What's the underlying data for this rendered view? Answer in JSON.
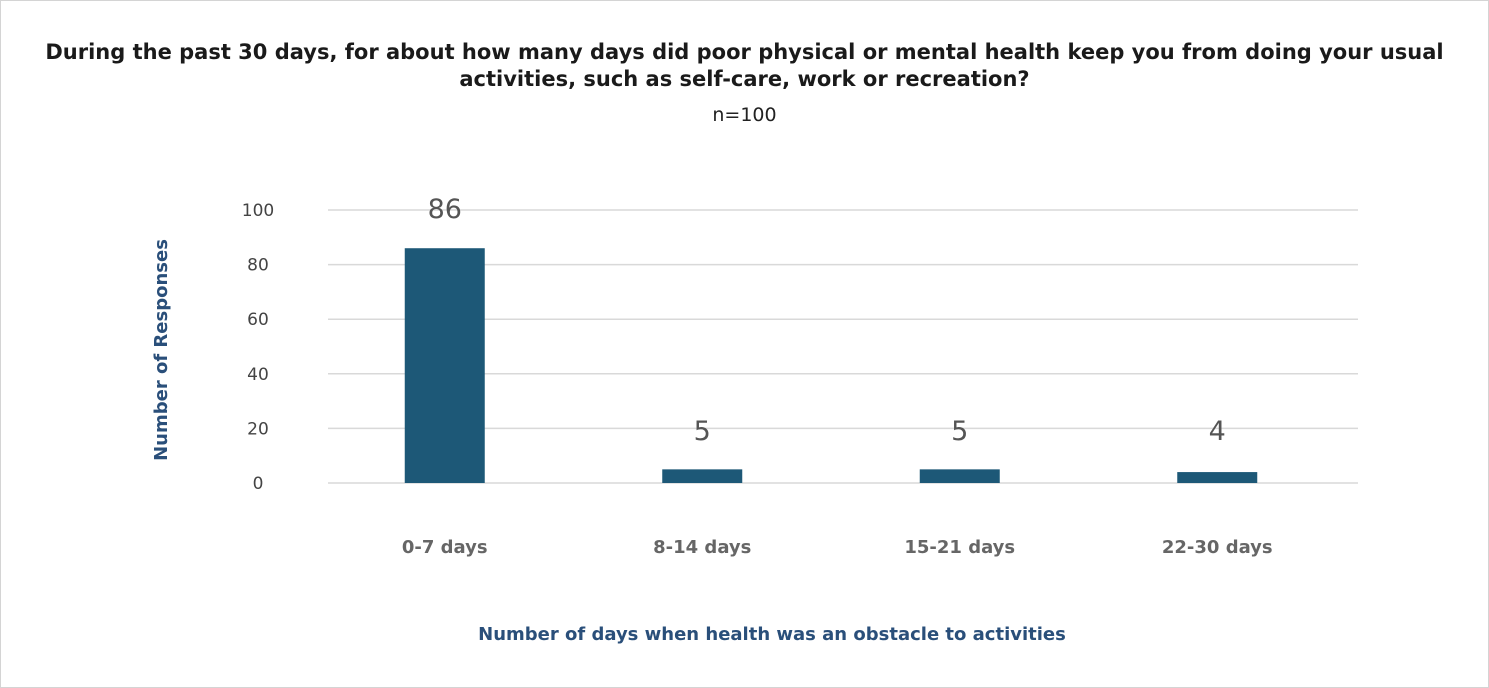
{
  "chart_data": {
    "type": "bar",
    "title": "During the past 30 days, for about how many days did poor physical or mental health keep you from doing your usual activities, such as self-care, work or recreation?",
    "subtitle": "n=100",
    "xlabel": "Number of days when health was an obstacle to activities",
    "ylabel": "Number of Responses",
    "categories": [
      "0-7 days",
      "8-14 days",
      "15-21 days",
      "22-30 days"
    ],
    "values": [
      86,
      5,
      5,
      4
    ],
    "data_labels": [
      "86",
      "5",
      "5",
      "4"
    ],
    "yticks": [
      "0",
      "20",
      "40",
      "60",
      "80",
      "100"
    ],
    "ylim": [
      0,
      100
    ],
    "grid": true,
    "legend": "none",
    "colors": {
      "bar": "#1d5877",
      "axis_label": "#2a4f7a",
      "grid": "#d9d9d9"
    }
  }
}
